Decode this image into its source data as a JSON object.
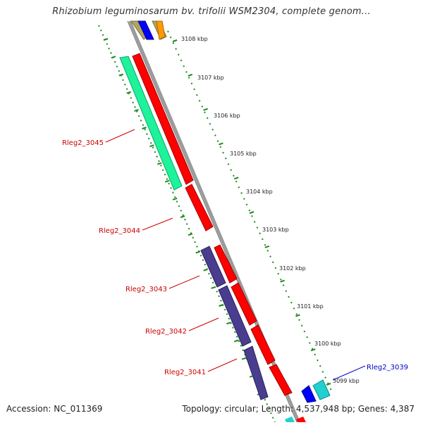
{
  "title": "Rhizobium leguminosarum bv. trifolii WSM2304, complete genom...",
  "accession": "Accession: NC_011369",
  "summary": "Topology: circular; Length: 4,537,948 bp; Genes: 4,387",
  "colors": {
    "backbone": "#9a9a9a",
    "ruler": "#1a8a1a",
    "red_gene": "#ff0000",
    "teal_gene": "#1ef29a",
    "navy_gene": "#4a3d8f",
    "blue_gene": "#0000ff",
    "cyan_gene": "#20d0d0",
    "olive_gene": "#b0a65a",
    "orange_gene": "#ff9a00",
    "red_label": "#cc0000",
    "blue_label": "#0000cc"
  },
  "ruler_labels": [
    "3108 kbp",
    "3107 kbp",
    "3106 kbp",
    "3105 kbp",
    "3104 kbp",
    "3103 kbp",
    "3102 kbp",
    "3101 kbp",
    "3100 kbp",
    "3099 kbp"
  ],
  "gene_labels": [
    {
      "text": "Rleg2_3045",
      "color": "red"
    },
    {
      "text": "Rleg2_3044",
      "color": "red"
    },
    {
      "text": "Rleg2_3043",
      "color": "red"
    },
    {
      "text": "Rleg2_3042",
      "color": "red"
    },
    {
      "text": "Rleg2_3041",
      "color": "red"
    },
    {
      "text": "Rleg2_3039",
      "color": "blue"
    }
  ]
}
